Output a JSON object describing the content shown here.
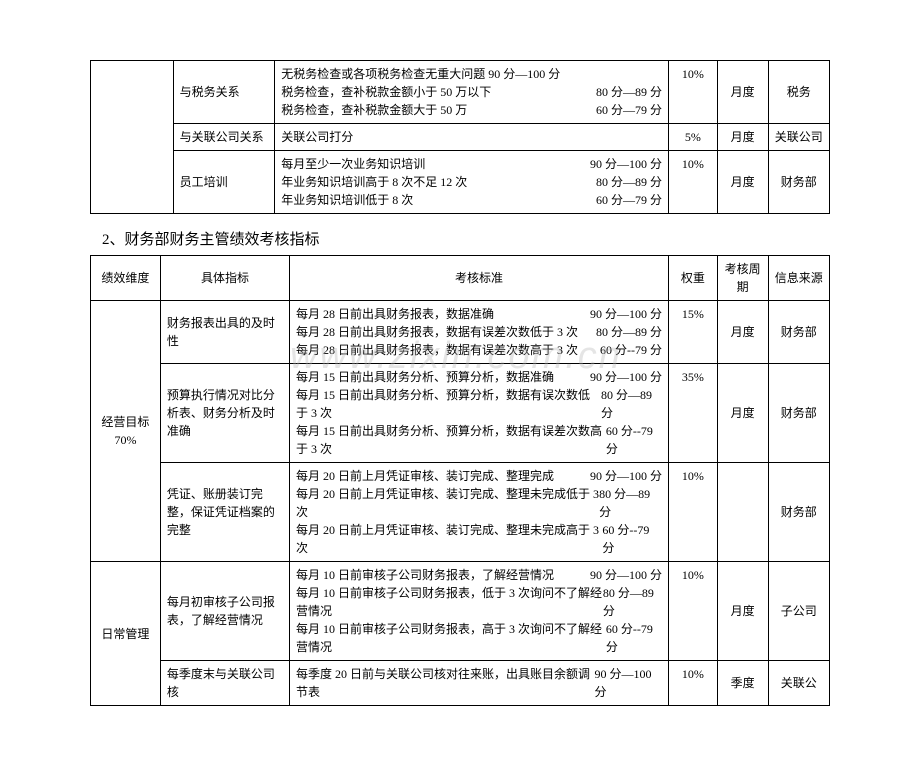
{
  "watermark": "www.zixin.com.cn",
  "table1": {
    "col_widths": [
      "78px",
      "96px",
      "372px",
      "46px",
      "48px",
      "58px"
    ],
    "rows": [
      {
        "c1": "",
        "c2": "与税务关系",
        "c3_lines": [
          {
            "text": "无税务检查或各项税务检查无重大问题 90 分—100 分",
            "score": ""
          },
          {
            "text": "税务检查，查补税款金额小于 50 万以下",
            "score": "80 分—89 分"
          },
          {
            "text": "税务检查，查补税款金额大于 50 万",
            "score": "60 分—79 分"
          }
        ],
        "c4": "10%",
        "c5": "月度",
        "c6": "税务"
      },
      {
        "c1": "",
        "c2": "与关联公司关系",
        "c3_lines": [
          {
            "text": "关联公司打分",
            "score": ""
          }
        ],
        "c4": "5%",
        "c5": "月度",
        "c6": "关联公司"
      },
      {
        "c1": "",
        "c2": "员工培训",
        "c3_lines": [
          {
            "text": "每月至少一次业务知识培训",
            "score": "90 分—100 分"
          },
          {
            "text": "年业务知识培训高于 8 次不足 12 次",
            "score": "80 分—89 分"
          },
          {
            "text": "年业务知识培训低于 8 次",
            "score": "60 分—79 分"
          }
        ],
        "c4": "10%",
        "c5": "月度",
        "c6": "财务部"
      }
    ]
  },
  "section_title": "2、财务部财务主管绩效考核指标",
  "table2": {
    "col_widths": [
      "66px",
      "122px",
      "358px",
      "46px",
      "48px",
      "58px"
    ],
    "headers": [
      "绩效维度",
      "具体指标",
      "考核标准",
      "权重",
      "考核周期",
      "信息来源"
    ],
    "group1_label": "经营目标\n70%",
    "group2_label": "日常管理",
    "rows": [
      {
        "indicator": "财务报表出具的及时性",
        "criteria": [
          {
            "text": "每月 28 日前出具财务报表，数据准确",
            "score": "90 分—100 分"
          },
          {
            "text": "每月 28 日前出具财务报表，数据有误差次数低于 3 次",
            "score": "80 分—89 分"
          },
          {
            "text": "每月 28 日前出具财务报表，数据有误差次数高于 3 次",
            "score": "60 分--79 分"
          }
        ],
        "weight": "15%",
        "cycle": "月度",
        "source": "财务部"
      },
      {
        "indicator": "预算执行情况对比分析表、财务分析及时准确",
        "criteria": [
          {
            "text": "每月 15 日前出具财务分析、预算分析，数据准确",
            "score": "90 分—100 分"
          },
          {
            "text": "每月 15 日前出具财务分析、预算分析，数据有误次数低于 3 次",
            "score": "80 分—89 分"
          },
          {
            "text": "每月 15 日前出具财务分析、预算分析，数据有误差次数高于 3 次",
            "score": "60 分--79 分"
          }
        ],
        "weight": "35%",
        "cycle": "月度",
        "source": "财务部"
      },
      {
        "indicator": "凭证、账册装订完整，保证凭证档案的完整",
        "criteria": [
          {
            "text": "每月 20 日前上月凭证审核、装订完成、整理完成",
            "score": "90 分—100 分"
          },
          {
            "text": "每月 20 日前上月凭证审核、装订完成、整理未完成低于 3 次",
            "score": "80 分—89 分"
          },
          {
            "text": "每月 20 日前上月凭证审核、装订完成、整理未完成高于 3 次",
            "score": "60 分--79 分"
          }
        ],
        "weight": "10%",
        "cycle": "",
        "source": "财务部"
      },
      {
        "indicator": "每月初审核子公司报表，了解经营情况",
        "criteria": [
          {
            "text": "每月 10 日前审核子公司财务报表，了解经营情况",
            "score": "90 分—100 分"
          },
          {
            "text": "每月 10 日前审核子公司财务报表，低于 3 次询问不了解经营情况",
            "score": "80 分—89 分"
          },
          {
            "text": "每月 10 日前审核子公司财务报表，高于 3 次询问不了解经营情况",
            "score": "60 分--79 分"
          }
        ],
        "weight": "10%",
        "cycle": "月度",
        "source": "子公司"
      },
      {
        "indicator": "每季度末与关联公司核",
        "criteria": [
          {
            "text": "每季度 20 日前与关联公司核对往来账，出具账目余额调节表",
            "score": "90 分—100 分"
          }
        ],
        "weight": "10%",
        "cycle": "季度",
        "source": "关联公"
      }
    ]
  }
}
